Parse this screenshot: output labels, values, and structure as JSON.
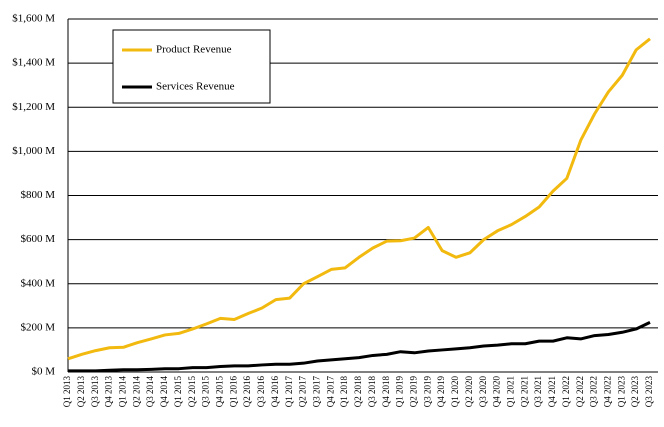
{
  "chart_data": {
    "type": "line",
    "categories": [
      "Q1 2013",
      "Q2 2013",
      "Q3 2013",
      "Q4 2013",
      "Q1 2014",
      "Q2 2014",
      "Q3 2014",
      "Q4 2014",
      "Q1 2015",
      "Q2 2015",
      "Q3 2015",
      "Q4 2015",
      "Q1 2016",
      "Q2 2016",
      "Q3 2016",
      "Q4 2016",
      "Q1 2017",
      "Q2 2017",
      "Q3 2017",
      "Q4 2017",
      "Q1 2018",
      "Q2 2018",
      "Q3 2018",
      "Q4 2018",
      "Q1 2019",
      "Q2 2019",
      "Q3 2019",
      "Q4 2019",
      "Q1 2020",
      "Q2 2020",
      "Q3 2020",
      "Q4 2020",
      "Q1 2021",
      "Q2 2021",
      "Q3 2021",
      "Q4 2021",
      "Q1 2022",
      "Q2 2022",
      "Q3 2022",
      "Q4 2022",
      "Q1 2023",
      "Q2 2023",
      "Q3 2023"
    ],
    "series": [
      {
        "name": "Product Revenue",
        "color": "#f2b90f",
        "values": [
          60,
          80,
          97,
          110,
          112,
          133,
          150,
          168,
          175,
          195,
          218,
          243,
          238,
          265,
          290,
          328,
          335,
          400,
          432,
          465,
          472,
          520,
          562,
          593,
          595,
          607,
          655,
          550,
          520,
          540,
          600,
          640,
          668,
          705,
          748,
          820,
          878,
          1050,
          1170,
          1270,
          1345,
          1460,
          1510
        ]
      },
      {
        "name": "Services Revenue",
        "color": "#000000",
        "values": [
          5,
          5,
          5,
          8,
          10,
          10,
          12,
          15,
          15,
          20,
          20,
          25,
          28,
          28,
          32,
          35,
          35,
          40,
          50,
          55,
          60,
          65,
          75,
          80,
          92,
          87,
          95,
          100,
          105,
          110,
          118,
          122,
          128,
          128,
          140,
          140,
          155,
          150,
          165,
          170,
          180,
          195,
          225
        ]
      }
    ],
    "ylim": [
      0,
      1600
    ],
    "yticks": [
      {
        "value": 0,
        "label": "$0 M"
      },
      {
        "value": 200,
        "label": "$200 M"
      },
      {
        "value": 400,
        "label": "$400 M"
      },
      {
        "value": 600,
        "label": "$600 M"
      },
      {
        "value": 800,
        "label": "$800 M"
      },
      {
        "value": 1000,
        "label": "$1,000 M"
      },
      {
        "value": 1200,
        "label": "$1,200 M"
      },
      {
        "value": 1400,
        "label": "$1,400 M"
      },
      {
        "value": 1600,
        "label": "$1,600 M"
      }
    ],
    "grid": true,
    "legend": "upper left"
  }
}
